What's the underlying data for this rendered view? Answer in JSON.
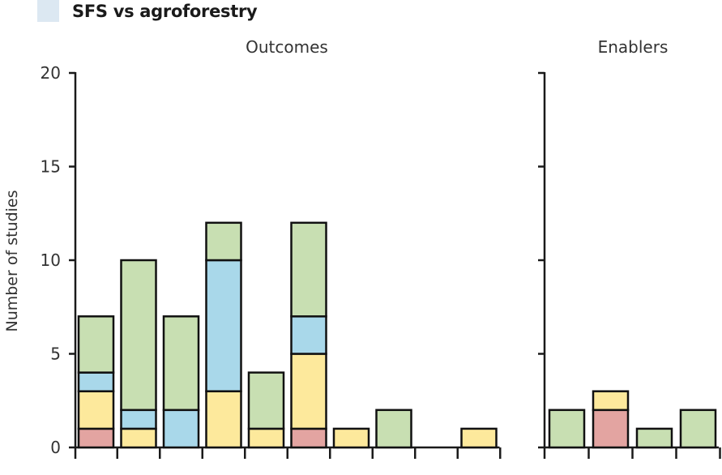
{
  "legend": {
    "label": "SFS vs agroforestry",
    "swatch_color": "#dce8f2"
  },
  "chart_data": {
    "type": "bar",
    "stacked": true,
    "ylabel": "Number of studies",
    "ylim": [
      0,
      20
    ],
    "yticks": [
      0,
      5,
      10,
      15,
      20
    ],
    "colors": {
      "red": "#e3a4a1",
      "yellow": "#fde99c",
      "blue": "#a9d8ea",
      "green": "#c8dfb2"
    },
    "panels": [
      {
        "title": "Outcomes",
        "bars": [
          {
            "segments": [
              {
                "color": "red",
                "value": 1
              },
              {
                "color": "yellow",
                "value": 2
              },
              {
                "color": "blue",
                "value": 1
              },
              {
                "color": "green",
                "value": 3
              }
            ]
          },
          {
            "segments": [
              {
                "color": "yellow",
                "value": 1
              },
              {
                "color": "blue",
                "value": 1
              },
              {
                "color": "green",
                "value": 8
              }
            ]
          },
          {
            "segments": [
              {
                "color": "blue",
                "value": 2
              },
              {
                "color": "green",
                "value": 5
              }
            ]
          },
          {
            "segments": [
              {
                "color": "yellow",
                "value": 3
              },
              {
                "color": "blue",
                "value": 7
              },
              {
                "color": "green",
                "value": 2
              }
            ]
          },
          {
            "segments": [
              {
                "color": "yellow",
                "value": 1
              },
              {
                "color": "green",
                "value": 3
              }
            ]
          },
          {
            "segments": [
              {
                "color": "red",
                "value": 1
              },
              {
                "color": "yellow",
                "value": 4
              },
              {
                "color": "blue",
                "value": 2
              },
              {
                "color": "green",
                "value": 5
              }
            ]
          },
          {
            "segments": [
              {
                "color": "yellow",
                "value": 1
              }
            ]
          },
          {
            "segments": [
              {
                "color": "green",
                "value": 2
              }
            ]
          },
          {
            "segments": []
          },
          {
            "segments": [
              {
                "color": "yellow",
                "value": 1
              }
            ]
          }
        ]
      },
      {
        "title": "Enablers",
        "bars": [
          {
            "segments": [
              {
                "color": "green",
                "value": 2
              }
            ]
          },
          {
            "segments": [
              {
                "color": "red",
                "value": 2
              },
              {
                "color": "yellow",
                "value": 1
              }
            ]
          },
          {
            "segments": [
              {
                "color": "green",
                "value": 1
              }
            ]
          },
          {
            "segments": [
              {
                "color": "green",
                "value": 2
              }
            ]
          }
        ]
      }
    ]
  }
}
